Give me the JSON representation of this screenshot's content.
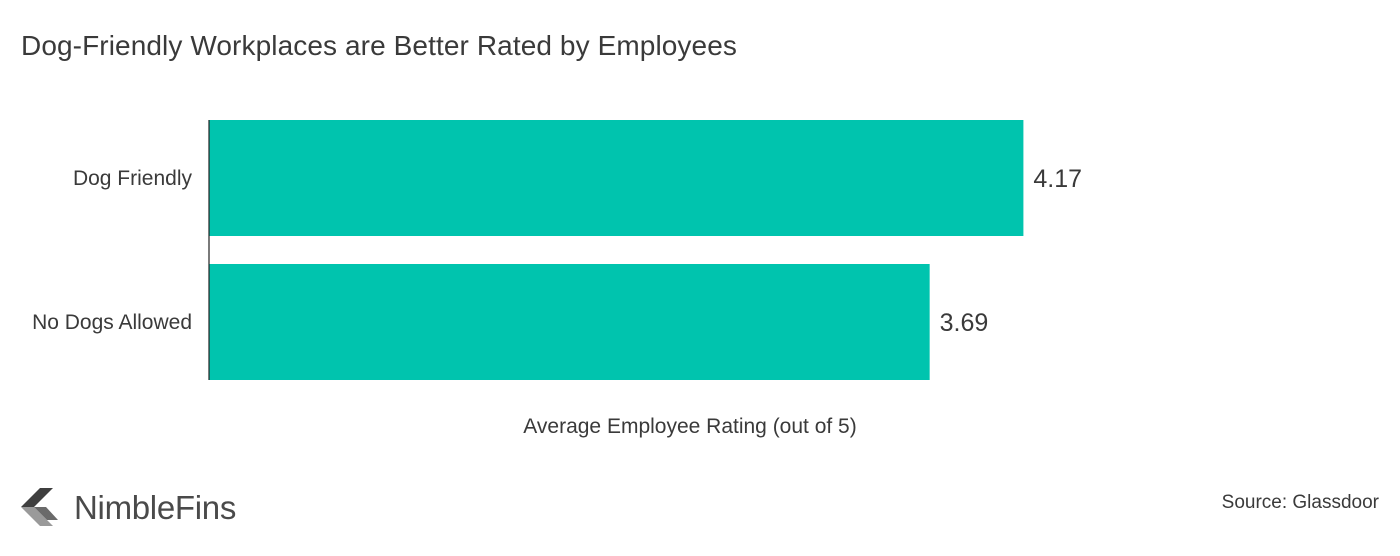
{
  "chart_data": {
    "type": "bar",
    "orientation": "horizontal",
    "title": "Dog-Friendly Workplaces are Better Rated by Employees",
    "categories": [
      "Dog Friendly",
      "No Dogs Allowed"
    ],
    "values": [
      4.17,
      3.69
    ],
    "value_labels": [
      "4.17",
      "3.69"
    ],
    "xlabel": "Average Employee Rating (out of 5)",
    "ylabel": "",
    "xlim": [
      0,
      5
    ],
    "grid": false,
    "legend": "none",
    "bar_color": "#00c4ae"
  },
  "footer": {
    "brand": "NimbleFins",
    "source": "Source: Glassdoor"
  },
  "icons": {
    "logo": "nimblefins-logo-icon"
  }
}
